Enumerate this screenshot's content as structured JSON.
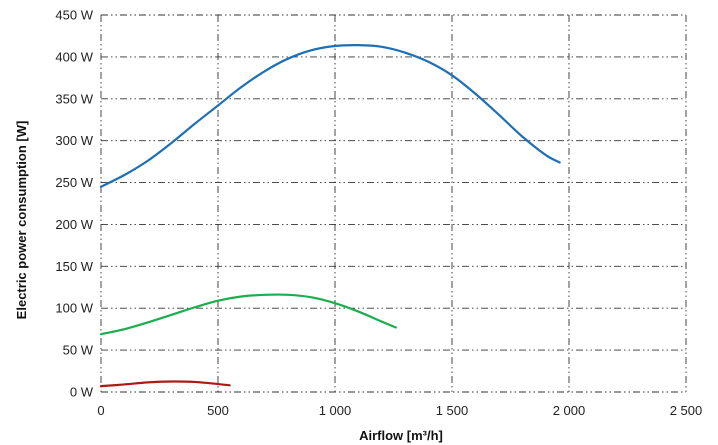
{
  "chart_data": {
    "type": "line",
    "xlabel": "Airflow [m³/h]",
    "ylabel": "Electric power consumption [W]",
    "xlim": [
      0,
      2500
    ],
    "ylim": [
      0,
      450
    ],
    "x_ticks": [
      {
        "value": 0,
        "label": "0"
      },
      {
        "value": 500,
        "label": "500"
      },
      {
        "value": 1000,
        "label": "1 000"
      },
      {
        "value": 1500,
        "label": "1 500"
      },
      {
        "value": 2000,
        "label": "2 000"
      },
      {
        "value": 2500,
        "label": "2 500"
      }
    ],
    "y_ticks": [
      {
        "value": 0,
        "label": "0 W"
      },
      {
        "value": 50,
        "label": "50 W"
      },
      {
        "value": 100,
        "label": "100 W"
      },
      {
        "value": 150,
        "label": "150 W"
      },
      {
        "value": 200,
        "label": "200 W"
      },
      {
        "value": 250,
        "label": "250 W"
      },
      {
        "value": 300,
        "label": "300 W"
      },
      {
        "value": 350,
        "label": "350 W"
      },
      {
        "value": 400,
        "label": "400 W"
      },
      {
        "value": 450,
        "label": "450 W"
      }
    ],
    "grid": true,
    "series": [
      {
        "color": "#1f6fb5",
        "points": [
          [
            0,
            245
          ],
          [
            100,
            259
          ],
          [
            200,
            276
          ],
          [
            300,
            297
          ],
          [
            400,
            320
          ],
          [
            500,
            342
          ],
          [
            600,
            364
          ],
          [
            700,
            383
          ],
          [
            800,
            398
          ],
          [
            900,
            408
          ],
          [
            1000,
            413
          ],
          [
            1100,
            414
          ],
          [
            1200,
            412
          ],
          [
            1300,
            405
          ],
          [
            1400,
            394
          ],
          [
            1500,
            378
          ],
          [
            1600,
            356
          ],
          [
            1700,
            331
          ],
          [
            1800,
            305
          ],
          [
            1900,
            283
          ],
          [
            1960,
            274
          ]
        ]
      },
      {
        "color": "#1aae4e",
        "points": [
          [
            0,
            69
          ],
          [
            100,
            75
          ],
          [
            200,
            83
          ],
          [
            300,
            92
          ],
          [
            400,
            101
          ],
          [
            500,
            109
          ],
          [
            600,
            114
          ],
          [
            700,
            116
          ],
          [
            800,
            116
          ],
          [
            900,
            113
          ],
          [
            1000,
            106
          ],
          [
            1100,
            96
          ],
          [
            1200,
            84
          ],
          [
            1260,
            77
          ]
        ]
      },
      {
        "color": "#b01818",
        "points": [
          [
            0,
            7
          ],
          [
            100,
            9
          ],
          [
            200,
            11.5
          ],
          [
            300,
            12.5
          ],
          [
            400,
            12
          ],
          [
            500,
            9.5
          ],
          [
            550,
            8
          ]
        ]
      }
    ]
  }
}
